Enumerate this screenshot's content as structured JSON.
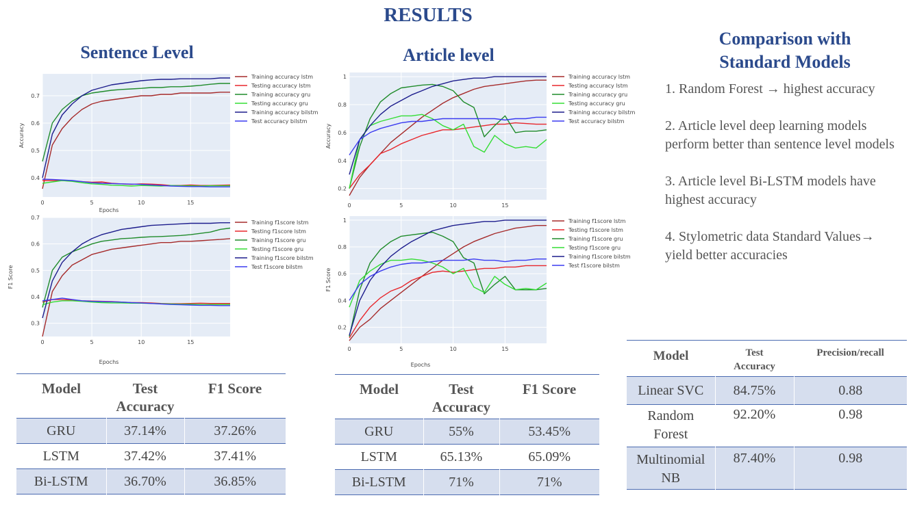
{
  "page": {
    "title": "RESULTS"
  },
  "sentence": {
    "title": "Sentence Level",
    "table": {
      "headers": [
        "Model",
        "Test Accuracy",
        "F1 Score"
      ],
      "rows": [
        [
          "GRU",
          "37.14%",
          "37.26%"
        ],
        [
          "LSTM",
          "37.42%",
          "37.41%"
        ],
        [
          "Bi-LSTM",
          "36.70%",
          "36.85%"
        ]
      ]
    }
  },
  "article": {
    "title": "Article level",
    "table": {
      "headers": [
        "Model",
        "Test Accuracy",
        "F1 Score"
      ],
      "rows": [
        [
          "GRU",
          "55%",
          "53.45%"
        ],
        [
          "LSTM",
          "65.13%",
          "65.09%"
        ],
        [
          "Bi-LSTM",
          "71%",
          "71%"
        ]
      ]
    }
  },
  "comparison": {
    "title_line1": "Comparison with",
    "title_line2": "Standard Models",
    "points": [
      "1. Random Forest → highest accuracy",
      "2. Article level deep learning models perform better than sentence level models",
      "3. Article level Bi-LSTM models have highest accuracy",
      "4. Stylometric data Standard Values→ yield better accuracies"
    ],
    "table": {
      "headers": [
        "Model",
        "Test Accuracy",
        "Precision/recall"
      ],
      "rows": [
        [
          "Linear SVC",
          "84.75%",
          "0.88"
        ],
        [
          "Random Forest",
          "92.20%",
          "0.98"
        ],
        [
          "Multinomial NB",
          "87.40%",
          "0.98"
        ]
      ]
    }
  },
  "colors": {
    "lstm_train": "#a52a2a",
    "lstm_test": "#e8262b",
    "gru_train": "#1f8b2a",
    "gru_test": "#33dd33",
    "bilstm_train": "#1c1c8c",
    "bilstm_test": "#3a3af0",
    "plot_bg": "#e5ecf6",
    "title": "#2b4a8c"
  },
  "chart_data": [
    {
      "id": "sentence_accuracy",
      "type": "line",
      "xlabel": "Epochs",
      "ylabel": "Accuracy",
      "xlim": [
        0,
        19
      ],
      "ylim": [
        0.33,
        0.78
      ],
      "xticks": [
        0,
        5,
        10,
        15
      ],
      "yticks": [
        0.4,
        0.5,
        0.6,
        0.7
      ],
      "x": [
        0,
        1,
        2,
        3,
        4,
        5,
        6,
        7,
        8,
        9,
        10,
        11,
        12,
        13,
        14,
        15,
        16,
        17,
        18,
        19
      ],
      "series": [
        {
          "name": "Training accuracy lstm",
          "color": "#a52a2a",
          "values": [
            0.36,
            0.52,
            0.58,
            0.62,
            0.65,
            0.67,
            0.68,
            0.685,
            0.69,
            0.695,
            0.7,
            0.7,
            0.705,
            0.705,
            0.71,
            0.71,
            0.71,
            0.71,
            0.713,
            0.713
          ]
        },
        {
          "name": "Testing accuracy lstm",
          "color": "#e8262b",
          "values": [
            0.39,
            0.39,
            0.39,
            0.388,
            0.386,
            0.384,
            0.385,
            0.38,
            0.378,
            0.376,
            0.378,
            0.377,
            0.375,
            0.372,
            0.372,
            0.374,
            0.372,
            0.372,
            0.373,
            0.374
          ]
        },
        {
          "name": "Training accuracy gru",
          "color": "#1f8b2a",
          "values": [
            0.46,
            0.6,
            0.65,
            0.68,
            0.7,
            0.71,
            0.715,
            0.72,
            0.723,
            0.725,
            0.727,
            0.73,
            0.73,
            0.733,
            0.733,
            0.735,
            0.738,
            0.742,
            0.745,
            0.745
          ]
        },
        {
          "name": "Testing accuracy gru",
          "color": "#33dd33",
          "values": [
            0.38,
            0.385,
            0.39,
            0.387,
            0.382,
            0.378,
            0.376,
            0.373,
            0.372,
            0.37,
            0.372,
            0.371,
            0.37,
            0.372,
            0.371,
            0.371,
            0.37,
            0.371,
            0.371,
            0.371
          ]
        },
        {
          "name": "Training accuracy bilstm",
          "color": "#1c1c8c",
          "values": [
            0.4,
            0.56,
            0.63,
            0.67,
            0.7,
            0.72,
            0.73,
            0.74,
            0.745,
            0.75,
            0.755,
            0.758,
            0.76,
            0.76,
            0.762,
            0.762,
            0.762,
            0.762,
            0.765,
            0.765
          ]
        },
        {
          "name": "Test accuracy bilstm",
          "color": "#3a3af0",
          "values": [
            0.395,
            0.394,
            0.392,
            0.39,
            0.386,
            0.382,
            0.38,
            0.379,
            0.378,
            0.377,
            0.376,
            0.374,
            0.372,
            0.37,
            0.369,
            0.368,
            0.368,
            0.367,
            0.367,
            0.367
          ]
        }
      ]
    },
    {
      "id": "sentence_f1",
      "type": "line",
      "xlabel": "Epochs",
      "ylabel": "F1 Score",
      "xlim": [
        0,
        19
      ],
      "ylim": [
        0.25,
        0.7
      ],
      "xticks": [
        0,
        5,
        10,
        15
      ],
      "yticks": [
        0.3,
        0.4,
        0.5,
        0.6,
        0.7
      ],
      "x": [
        0,
        1,
        2,
        3,
        4,
        5,
        6,
        7,
        8,
        9,
        10,
        11,
        12,
        13,
        14,
        15,
        16,
        17,
        18,
        19
      ],
      "series": [
        {
          "name": "Training f1score lstm",
          "color": "#a52a2a",
          "values": [
            0.25,
            0.42,
            0.48,
            0.52,
            0.54,
            0.56,
            0.57,
            0.58,
            0.585,
            0.59,
            0.595,
            0.6,
            0.605,
            0.605,
            0.61,
            0.61,
            0.612,
            0.615,
            0.617,
            0.62
          ]
        },
        {
          "name": "Testing f1score lstm",
          "color": "#e8262b",
          "values": [
            0.38,
            0.39,
            0.39,
            0.388,
            0.385,
            0.384,
            0.383,
            0.382,
            0.38,
            0.378,
            0.378,
            0.377,
            0.375,
            0.374,
            0.374,
            0.375,
            0.376,
            0.375,
            0.375,
            0.375
          ]
        },
        {
          "name": "Training f1score gru",
          "color": "#1f8b2a",
          "values": [
            0.36,
            0.5,
            0.55,
            0.57,
            0.585,
            0.6,
            0.61,
            0.615,
            0.62,
            0.622,
            0.625,
            0.627,
            0.628,
            0.63,
            0.632,
            0.635,
            0.64,
            0.645,
            0.655,
            0.66
          ]
        },
        {
          "name": "Testing f1score gru",
          "color": "#33dd33",
          "values": [
            0.37,
            0.38,
            0.385,
            0.385,
            0.383,
            0.38,
            0.378,
            0.377,
            0.377,
            0.376,
            0.376,
            0.375,
            0.374,
            0.373,
            0.372,
            0.372,
            0.371,
            0.371,
            0.371,
            0.371
          ]
        },
        {
          "name": "Training f1score bilstm",
          "color": "#1c1c8c",
          "values": [
            0.32,
            0.46,
            0.53,
            0.57,
            0.6,
            0.62,
            0.635,
            0.645,
            0.655,
            0.66,
            0.665,
            0.67,
            0.672,
            0.674,
            0.676,
            0.678,
            0.678,
            0.678,
            0.68,
            0.68
          ]
        },
        {
          "name": "Test f1score bilstm",
          "color": "#3a3af0",
          "values": [
            0.385,
            0.39,
            0.395,
            0.39,
            0.385,
            0.383,
            0.382,
            0.381,
            0.38,
            0.378,
            0.377,
            0.375,
            0.373,
            0.371,
            0.37,
            0.369,
            0.368,
            0.368,
            0.367,
            0.367
          ]
        }
      ]
    },
    {
      "id": "article_accuracy",
      "type": "line",
      "xlabel": "",
      "ylabel": "Accuracy",
      "xlim": [
        0,
        19
      ],
      "ylim": [
        0.12,
        1.03
      ],
      "xticks": [
        0,
        5,
        10,
        15
      ],
      "yticks": [
        0.2,
        0.4,
        0.6,
        0.8,
        1
      ],
      "x": [
        0,
        1,
        2,
        3,
        4,
        5,
        6,
        7,
        8,
        9,
        10,
        11,
        12,
        13,
        14,
        15,
        16,
        17,
        18,
        19
      ],
      "series": [
        {
          "name": "Training accuracy lstm",
          "color": "#a52a2a",
          "values": [
            0.15,
            0.28,
            0.37,
            0.45,
            0.53,
            0.59,
            0.65,
            0.71,
            0.76,
            0.81,
            0.85,
            0.88,
            0.91,
            0.93,
            0.94,
            0.95,
            0.96,
            0.97,
            0.975,
            0.975
          ]
        },
        {
          "name": "Testing accuracy lstm",
          "color": "#e8262b",
          "values": [
            0.2,
            0.3,
            0.37,
            0.45,
            0.48,
            0.52,
            0.55,
            0.58,
            0.6,
            0.62,
            0.62,
            0.63,
            0.64,
            0.65,
            0.66,
            0.66,
            0.67,
            0.665,
            0.66,
            0.66
          ]
        },
        {
          "name": "Training accuracy gru",
          "color": "#1f8b2a",
          "values": [
            0.2,
            0.5,
            0.7,
            0.82,
            0.88,
            0.92,
            0.93,
            0.94,
            0.945,
            0.93,
            0.9,
            0.82,
            0.78,
            0.57,
            0.65,
            0.72,
            0.6,
            0.61,
            0.61,
            0.62
          ]
        },
        {
          "name": "Testing accuracy gru",
          "color": "#33dd33",
          "values": [
            0.2,
            0.55,
            0.65,
            0.68,
            0.7,
            0.72,
            0.72,
            0.73,
            0.7,
            0.65,
            0.62,
            0.66,
            0.5,
            0.46,
            0.58,
            0.52,
            0.49,
            0.5,
            0.49,
            0.55
          ]
        },
        {
          "name": "Training accuracy bilstm",
          "color": "#1c1c8c",
          "values": [
            0.3,
            0.55,
            0.65,
            0.73,
            0.79,
            0.83,
            0.87,
            0.9,
            0.93,
            0.95,
            0.97,
            0.98,
            0.99,
            0.99,
            1.0,
            1.0,
            1.0,
            1.0,
            1.0,
            1.0
          ]
        },
        {
          "name": "Test accuracy bilstm",
          "color": "#3a3af0",
          "values": [
            0.44,
            0.55,
            0.6,
            0.63,
            0.65,
            0.67,
            0.68,
            0.68,
            0.69,
            0.7,
            0.7,
            0.7,
            0.7,
            0.7,
            0.7,
            0.69,
            0.7,
            0.7,
            0.71,
            0.71
          ]
        }
      ]
    },
    {
      "id": "article_f1",
      "type": "line",
      "xlabel": "Epochs",
      "ylabel": "F1 Score",
      "xlim": [
        0,
        19
      ],
      "ylim": [
        0.08,
        1.03
      ],
      "xticks": [
        0,
        5,
        10,
        15
      ],
      "yticks": [
        0.2,
        0.4,
        0.6,
        0.8,
        1
      ],
      "x": [
        0,
        1,
        2,
        3,
        4,
        5,
        6,
        7,
        8,
        9,
        10,
        11,
        12,
        13,
        14,
        15,
        16,
        17,
        18,
        19
      ],
      "series": [
        {
          "name": "Training f1score lstm",
          "color": "#a52a2a",
          "values": [
            0.1,
            0.2,
            0.26,
            0.34,
            0.4,
            0.46,
            0.52,
            0.58,
            0.64,
            0.7,
            0.75,
            0.8,
            0.84,
            0.87,
            0.9,
            0.92,
            0.94,
            0.95,
            0.96,
            0.96
          ]
        },
        {
          "name": "Testing f1score lstm",
          "color": "#e8262b",
          "values": [
            0.12,
            0.25,
            0.35,
            0.42,
            0.47,
            0.5,
            0.55,
            0.58,
            0.61,
            0.62,
            0.61,
            0.62,
            0.63,
            0.64,
            0.64,
            0.65,
            0.65,
            0.66,
            0.66,
            0.66
          ]
        },
        {
          "name": "Training f1score gru",
          "color": "#1f8b2a",
          "values": [
            0.13,
            0.48,
            0.68,
            0.78,
            0.84,
            0.88,
            0.89,
            0.9,
            0.91,
            0.88,
            0.84,
            0.72,
            0.68,
            0.45,
            0.52,
            0.58,
            0.48,
            0.48,
            0.48,
            0.49
          ]
        },
        {
          "name": "Testing f1score gru",
          "color": "#33dd33",
          "values": [
            0.35,
            0.55,
            0.62,
            0.67,
            0.7,
            0.7,
            0.71,
            0.7,
            0.68,
            0.65,
            0.6,
            0.64,
            0.5,
            0.46,
            0.58,
            0.52,
            0.48,
            0.49,
            0.48,
            0.53
          ]
        },
        {
          "name": "Training f1score bilstm",
          "color": "#1c1c8c",
          "values": [
            0.14,
            0.4,
            0.55,
            0.65,
            0.73,
            0.79,
            0.84,
            0.88,
            0.92,
            0.94,
            0.96,
            0.97,
            0.98,
            0.99,
            0.99,
            1.0,
            1.0,
            1.0,
            1.0,
            1.0
          ]
        },
        {
          "name": "Test f1score bilstm",
          "color": "#3a3af0",
          "values": [
            0.4,
            0.52,
            0.58,
            0.62,
            0.65,
            0.67,
            0.68,
            0.68,
            0.69,
            0.7,
            0.7,
            0.7,
            0.71,
            0.7,
            0.7,
            0.69,
            0.7,
            0.7,
            0.71,
            0.71
          ]
        }
      ]
    }
  ]
}
